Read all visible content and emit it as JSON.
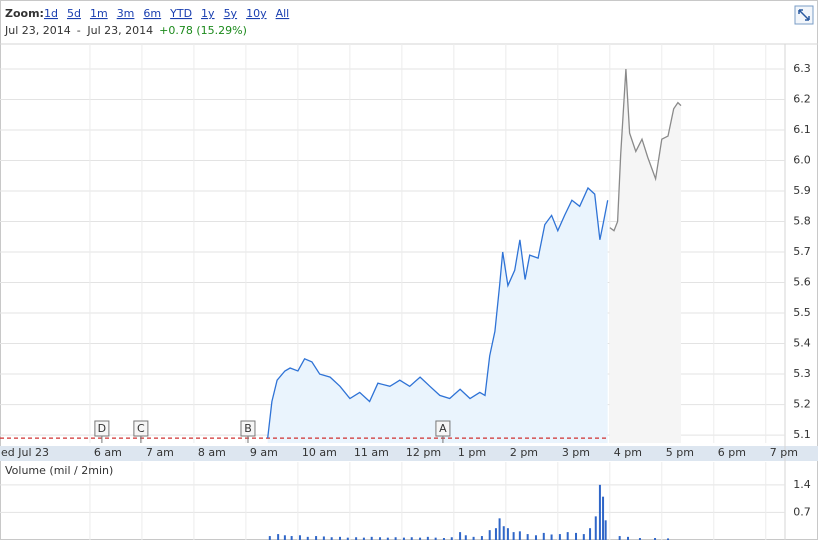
{
  "zoom": {
    "label": "Zoom:",
    "options": [
      "1d",
      "5d",
      "1m",
      "3m",
      "6m",
      "YTD",
      "1y",
      "5y",
      "10y",
      "All"
    ]
  },
  "range": {
    "from": "Jul 23, 2014",
    "separator": "-",
    "to": "Jul 23, 2014",
    "change": "+0.78 (15.29%)"
  },
  "chart_data": [
    {
      "type": "line",
      "date_label": "ed Jul 23",
      "xlim": [
        4.27,
        19.37
      ],
      "xticks": [
        {
          "value": 6,
          "label": "6 am"
        },
        {
          "value": 7,
          "label": "7 am"
        },
        {
          "value": 8,
          "label": "8 am"
        },
        {
          "value": 9,
          "label": "9 am"
        },
        {
          "value": 10,
          "label": "10 am"
        },
        {
          "value": 11,
          "label": "11 am"
        },
        {
          "value": 12,
          "label": "12 pm"
        },
        {
          "value": 13,
          "label": "1 pm"
        },
        {
          "value": 14,
          "label": "2 pm"
        },
        {
          "value": 15,
          "label": "3 pm"
        },
        {
          "value": 16,
          "label": "4 pm"
        },
        {
          "value": 17,
          "label": "5 pm"
        },
        {
          "value": 18,
          "label": "6 pm"
        },
        {
          "value": 19,
          "label": "7 pm"
        }
      ],
      "ylim": [
        5.074,
        6.382
      ],
      "yticks": [
        5.1,
        5.2,
        5.3,
        5.4,
        5.5,
        5.6,
        5.7,
        5.8,
        5.9,
        {
          "value": 6.0,
          "label": "6.0"
        },
        6.1,
        6.2,
        6.3
      ],
      "grid": true,
      "series": [
        {
          "color": "#2f73d6",
          "fill": "#eaf4fd",
          "x": [
            9.42,
            9.5,
            9.6,
            9.75,
            9.85,
            10.0,
            10.13,
            10.27,
            10.42,
            10.62,
            10.81,
            11.0,
            11.19,
            11.38,
            11.54,
            11.77,
            11.96,
            12.15,
            12.35,
            12.54,
            12.73,
            12.92,
            13.12,
            13.31,
            13.5,
            13.6,
            13.69,
            13.79,
            13.88,
            13.94,
            14.04,
            14.17,
            14.27,
            14.37,
            14.46,
            14.62,
            14.75,
            14.88,
            15.0,
            15.13,
            15.27,
            15.42,
            15.58,
            15.71,
            15.81,
            15.88,
            15.96
          ],
          "values": [
            5.09,
            5.21,
            5.28,
            5.31,
            5.32,
            5.31,
            5.35,
            5.34,
            5.3,
            5.29,
            5.26,
            5.22,
            5.24,
            5.21,
            5.27,
            5.26,
            5.28,
            5.26,
            5.29,
            5.26,
            5.23,
            5.22,
            5.25,
            5.22,
            5.24,
            5.23,
            5.36,
            5.44,
            5.59,
            5.7,
            5.59,
            5.64,
            5.74,
            5.61,
            5.69,
            5.68,
            5.79,
            5.82,
            5.77,
            5.82,
            5.87,
            5.85,
            5.91,
            5.89,
            5.74,
            5.8,
            5.87
          ]
        },
        {
          "color": "#8a8a8a",
          "fill": "#f5f5f5",
          "x": [
            16.0,
            16.08,
            16.15,
            16.21,
            16.31,
            16.38,
            16.5,
            16.62,
            16.73,
            16.88,
            17.0,
            17.12,
            17.23,
            17.31,
            17.37
          ],
          "values": [
            5.78,
            5.77,
            5.8,
            6.02,
            6.3,
            6.09,
            6.03,
            6.07,
            6.01,
            5.94,
            6.07,
            6.08,
            6.17,
            6.19,
            6.18
          ]
        }
      ],
      "reference_line": {
        "value": 5.09,
        "color": "#d03030"
      },
      "markers": [
        {
          "label": "D",
          "x": 6.23
        },
        {
          "label": "C",
          "x": 6.98
        },
        {
          "label": "B",
          "x": 9.04
        },
        {
          "label": "A",
          "x": 12.79
        }
      ]
    },
    {
      "type": "bar",
      "title": "Volume (mil / 2min)",
      "color": "#2f66c8",
      "ylim": [
        0,
        1.98
      ],
      "yticks": [
        0.7,
        1.4
      ],
      "x": [
        9.46,
        9.62,
        9.75,
        9.88,
        10.04,
        10.19,
        10.35,
        10.5,
        10.65,
        10.81,
        10.96,
        11.12,
        11.27,
        11.42,
        11.58,
        11.73,
        11.88,
        12.04,
        12.19,
        12.35,
        12.5,
        12.65,
        12.81,
        12.96,
        13.12,
        13.23,
        13.38,
        13.54,
        13.69,
        13.81,
        13.88,
        13.96,
        14.04,
        14.15,
        14.27,
        14.42,
        14.58,
        14.73,
        14.88,
        15.04,
        15.19,
        15.35,
        15.5,
        15.62,
        15.73,
        15.81,
        15.87,
        15.92,
        16.19,
        16.35,
        16.58,
        16.87,
        17.12
      ],
      "values": [
        0.1,
        0.15,
        0.12,
        0.1,
        0.12,
        0.08,
        0.1,
        0.09,
        0.07,
        0.08,
        0.06,
        0.07,
        0.06,
        0.08,
        0.07,
        0.06,
        0.07,
        0.06,
        0.07,
        0.06,
        0.08,
        0.06,
        0.05,
        0.07,
        0.2,
        0.12,
        0.08,
        0.1,
        0.25,
        0.3,
        0.55,
        0.35,
        0.3,
        0.2,
        0.22,
        0.15,
        0.12,
        0.18,
        0.14,
        0.15,
        0.2,
        0.18,
        0.15,
        0.3,
        0.6,
        1.4,
        1.1,
        0.5,
        0.1,
        0.08,
        0.05,
        0.05,
        0.04
      ]
    }
  ]
}
